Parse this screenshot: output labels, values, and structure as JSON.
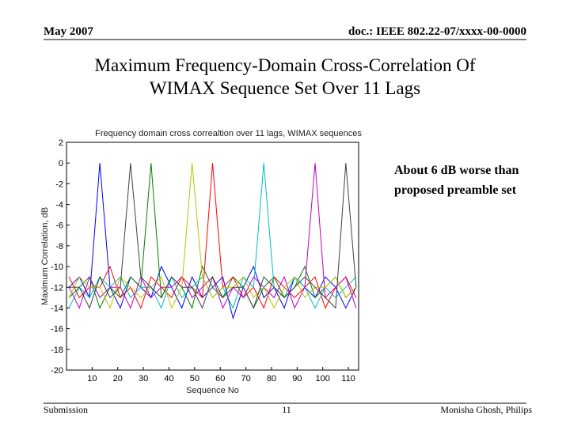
{
  "header": {
    "date": "May 2007",
    "doc": "doc.: IEEE 802.22-07/xxxx-00-0000"
  },
  "title_lines": [
    "Maximum Frequency-Domain Cross-Correlation Of",
    "WIMAX Sequence Set Over 11 Lags"
  ],
  "chart_data": {
    "type": "line",
    "title": "Frequency domain cross correaltion over 11 lags, WIMAX sequences",
    "x_label": "Sequence No",
    "y_label": "Maximum Correlation, dB",
    "x": [
      1,
      5,
      9,
      13,
      17,
      21,
      25,
      29,
      33,
      37,
      41,
      45,
      49,
      53,
      57,
      61,
      65,
      69,
      73,
      77,
      81,
      85,
      89,
      93,
      97,
      101,
      105,
      109,
      113
    ],
    "series": [
      {
        "color": "#0000ff",
        "values": [
          -12,
          -11,
          -13,
          0,
          -12,
          -14,
          -11,
          -12,
          -13,
          -10,
          -12,
          -14,
          -11,
          -13,
          -12,
          -11,
          -15,
          -12,
          -10,
          -13,
          -12,
          -14,
          -11,
          -12,
          -13,
          -11,
          -12,
          -14,
          -12
        ]
      },
      {
        "color": "#008000",
        "values": [
          -13,
          -12,
          -11,
          -14,
          -12,
          -13,
          -11,
          -12,
          0,
          -13,
          -11,
          -12,
          -14,
          -10,
          -12,
          -13,
          -11,
          -12,
          -14,
          -12,
          -11,
          -13,
          -12,
          -10,
          -13,
          -12,
          -11,
          -13,
          -12
        ]
      },
      {
        "color": "#ff0000",
        "values": [
          -11,
          -13,
          -12,
          -12,
          -10,
          -13,
          -12,
          -14,
          -11,
          -12,
          -13,
          -11,
          -12,
          -13,
          0,
          -12,
          -11,
          -13,
          -12,
          -14,
          -11,
          -12,
          -13,
          -12,
          -11,
          -14,
          -12,
          -11,
          -13
        ]
      },
      {
        "color": "#00bfbf",
        "values": [
          -14,
          -12,
          -13,
          -11,
          -12,
          -11,
          -13,
          -12,
          -12,
          -14,
          -11,
          -13,
          -12,
          -11,
          -13,
          -12,
          -14,
          -11,
          -12,
          0,
          -12,
          -13,
          -11,
          -12,
          -14,
          -12,
          -13,
          -12,
          -11
        ]
      },
      {
        "color": "#bf00bf",
        "values": [
          -12,
          -14,
          -11,
          -13,
          -12,
          -12,
          -14,
          -11,
          -13,
          -12,
          -12,
          -11,
          -13,
          -12,
          -11,
          -14,
          -12,
          -13,
          -11,
          -12,
          -13,
          -11,
          -14,
          -12,
          0,
          -13,
          -12,
          -11,
          -14
        ]
      },
      {
        "color": "#bfbf00",
        "values": [
          -13,
          -11,
          -12,
          -12,
          -14,
          -11,
          -12,
          -13,
          -12,
          -11,
          -14,
          -12,
          0,
          -11,
          -13,
          -12,
          -12,
          -11,
          -13,
          -12,
          -14,
          -12,
          -11,
          -13,
          -12,
          -12,
          -11,
          -13,
          -12
        ]
      },
      {
        "color": "#404040",
        "values": [
          -12,
          -12,
          -14,
          -11,
          -13,
          -12,
          0,
          -11,
          -12,
          -13,
          -11,
          -12,
          -12,
          -14,
          -11,
          -13,
          -12,
          -12,
          -14,
          -11,
          -12,
          -13,
          -12,
          -11,
          -12,
          -13,
          -14,
          0,
          -12
        ]
      }
    ],
    "xlim": [
      0,
      114
    ],
    "ylim": [
      -20,
      2
    ],
    "xticks": [
      10,
      20,
      30,
      40,
      50,
      60,
      70,
      80,
      90,
      100,
      110
    ],
    "yticks": [
      2,
      0,
      -2,
      -4,
      -6,
      -8,
      -10,
      -12,
      -14,
      -16,
      -18,
      -20
    ]
  },
  "annotation_lines": [
    "About 6 dB worse than",
    "proposed preamble set"
  ],
  "footer": {
    "left": "Submission",
    "page": "11",
    "right": "Monisha Ghosh, Philips"
  }
}
